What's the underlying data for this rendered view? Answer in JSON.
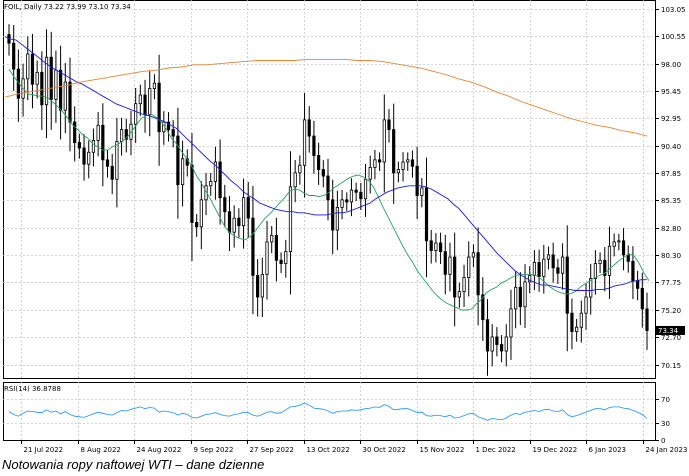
{
  "caption": "Notowania ropy naftowej WTI – dane dzienne",
  "chart_data": [
    {
      "type": "candlestick",
      "title": "FOIL, Daily 73.22 73.99 73.10 73.34",
      "ylim": [
        68.9,
        103.9
      ],
      "y_ticks": [
        "103.05",
        "100.55",
        "98.00",
        "95.45",
        "92.95",
        "90.40",
        "87.85",
        "85.35",
        "82.80",
        "80.30",
        "77.75",
        "75.20",
        "72.70",
        "70.15"
      ],
      "x_ticks": [
        "21 Jul 2022",
        "8 Aug 2022",
        "24 Aug 2022",
        "9 Sep 2022",
        "27 Sep 2022",
        "13 Oct 2022",
        "30 Oct 2022",
        "15 Nov 2022",
        "1 Dec 2022",
        "19 Dec 2022",
        "6 Jan 2023",
        "24 Jan 2023"
      ],
      "last_price_label": "73.34",
      "close": [
        99.9,
        97.5,
        94.8,
        96.6,
        98.9,
        96.1,
        97.2,
        94.2,
        98.6,
        94.7,
        97.4,
        93.7,
        96.3,
        92.6,
        90.7,
        90.2,
        88.7,
        89.8,
        90.9,
        92.3,
        89.1,
        88.5,
        87.3,
        90.8,
        91.9,
        91.0,
        92.4,
        94.3,
        95.1,
        93.3,
        95.7,
        96.2,
        91.7,
        92.6,
        91.9,
        91.3,
        86.8,
        89.2,
        88.6,
        83.3,
        82.9,
        85.4,
        86.7,
        87.1,
        88.9,
        85.6,
        84.3,
        82.4,
        83.7,
        83.0,
        85.6,
        83.7,
        78.4,
        76.4,
        78.5,
        81.5,
        82.1,
        79.8,
        79.5,
        80.6,
        86.6,
        87.9,
        88.6,
        92.8,
        91.3,
        89.5,
        88.2,
        87.6,
        85.4,
        82.6,
        84.7,
        85.4,
        85.2,
        86.3,
        86.1,
        85.5,
        87.3,
        88.4,
        89.1,
        88.9,
        92.8,
        91.9,
        87.9,
        88.2,
        88.9,
        89.1,
        88.5,
        85.8,
        86.5,
        81.6,
        80.7,
        81.4,
        80.6,
        78.5,
        80.1,
        76.4,
        76.9,
        78.2,
        80.1,
        80.5,
        76.6,
        74.3,
        71.4,
        72.7,
        72.0,
        71.4,
        72.7,
        75.3,
        77.3,
        75.5,
        77.8,
        78.4,
        79.6,
        78.3,
        79.9,
        80.3,
        79.1,
        78.6,
        80.1,
        74.9,
        73.2,
        73.6,
        74.9,
        76.4,
        78.1,
        79.5,
        79.8,
        78.4,
        81.1,
        81.5,
        81.6,
        80.3,
        79.7,
        77.9,
        77.2,
        75.3,
        73.3
      ],
      "sma_fast": [
        97.5,
        96.8,
        96.2,
        95.6,
        95.2,
        95.1,
        95.0,
        95.0,
        94.8,
        94.4,
        94.0,
        93.5,
        92.9,
        92.3,
        91.9,
        91.4,
        91.1,
        90.6,
        90.3,
        90.0,
        90.0,
        90.3,
        90.5,
        90.8,
        91.2,
        91.8,
        92.4,
        93.0,
        93.2,
        93.3,
        93.0,
        92.6,
        91.9,
        91.1,
        90.6,
        89.9,
        89.3,
        88.6,
        87.7,
        87.0,
        86.2,
        85.4,
        84.5,
        83.6,
        82.8,
        82.3,
        82.0,
        81.8,
        81.7,
        82.0,
        82.5,
        83.1,
        83.7,
        84.1,
        84.6,
        85.1,
        85.6,
        86.2,
        86.4,
        86.3,
        86.0,
        85.8,
        85.8,
        85.7,
        85.8,
        86.1,
        86.5,
        86.8,
        87.1,
        87.4,
        87.6,
        87.7,
        87.5,
        87.2,
        86.6,
        85.7,
        84.7,
        83.8,
        82.9,
        82.0,
        81.1,
        80.3,
        79.6,
        78.8,
        78.2,
        77.6,
        77.0,
        76.5,
        76.1,
        75.8,
        75.6,
        75.4,
        75.2,
        75.2,
        75.3,
        75.8,
        76.2,
        76.8,
        77.1,
        77.3,
        77.7,
        77.9,
        78.2,
        78.4,
        78.5,
        78.5,
        78.5,
        78.4,
        78.1,
        77.7,
        77.3,
        77.0,
        76.8,
        76.7,
        76.7,
        76.9,
        77.3,
        77.6,
        77.9,
        78.2,
        78.4,
        78.6,
        79.0,
        79.4,
        79.8,
        80.1,
        80.4,
        80.2,
        79.5,
        78.6,
        77.9
      ],
      "sma_mid": [
        100.5,
        100.3,
        100.2,
        99.8,
        99.4,
        99.0,
        98.6,
        98.2,
        97.8,
        97.5,
        97.2,
        96.9,
        96.6,
        96.3,
        96.1,
        95.8,
        95.5,
        95.2,
        94.9,
        94.6,
        94.3,
        94.1,
        93.9,
        93.7,
        93.5,
        93.3,
        93.2,
        93.0,
        92.8,
        92.6,
        92.3,
        92.0,
        91.5,
        91.0,
        90.5,
        90.0,
        89.5,
        89.0,
        88.6,
        88.1,
        87.6,
        87.1,
        86.7,
        86.2,
        85.8,
        85.5,
        85.1,
        84.9,
        84.7,
        84.5,
        84.4,
        84.3,
        84.3,
        84.2,
        84.2,
        84.1,
        84.0,
        84.0,
        84.0,
        84.1,
        84.2,
        84.2,
        84.3,
        84.5,
        84.7,
        84.9,
        85.1,
        85.5,
        85.8,
        86.1,
        86.3,
        86.5,
        86.6,
        86.7,
        86.7,
        86.7,
        86.6,
        86.4,
        86.1,
        85.8,
        85.5,
        85.0,
        84.6,
        84.0,
        83.4,
        82.8,
        82.2,
        81.6,
        81.0,
        80.4,
        79.9,
        79.4,
        78.9,
        78.5,
        78.2,
        77.9,
        77.7,
        77.5,
        77.5,
        77.4,
        77.3,
        77.2,
        77.1,
        77.0,
        77.0,
        77.0,
        77.0,
        77.1,
        77.1,
        77.2,
        77.4,
        77.5,
        77.6,
        77.8,
        77.9,
        78.0,
        78.0
      ]
    },
    {
      "type": "line",
      "title": "RSI(14) 36.8788",
      "ylim": [
        0,
        100
      ],
      "y_ticks": [
        "70",
        "30",
        "0"
      ],
      "values": [
        49,
        44,
        41,
        46,
        50,
        49,
        48,
        47,
        52,
        48,
        50,
        45,
        49,
        44,
        41,
        40,
        39,
        42,
        45,
        48,
        46,
        44,
        43,
        47,
        51,
        50,
        53,
        55,
        57,
        54,
        56,
        55,
        48,
        50,
        49,
        47,
        43,
        46,
        44,
        39,
        38,
        41,
        44,
        45,
        47,
        44,
        42,
        41,
        44,
        45,
        48,
        47,
        43,
        41,
        44,
        48,
        49,
        46,
        47,
        52,
        57,
        58,
        60,
        64,
        60,
        55,
        54,
        53,
        50,
        46,
        49,
        50,
        50,
        52,
        51,
        52,
        54,
        55,
        57,
        56,
        61,
        58,
        52,
        53,
        54,
        54,
        51,
        47,
        48,
        42,
        41,
        43,
        42,
        40,
        43,
        38,
        39,
        42,
        45,
        46,
        40,
        37,
        34,
        37,
        36,
        35,
        38,
        43,
        46,
        44,
        48,
        49,
        51,
        49,
        52,
        53,
        50,
        49,
        52,
        44,
        40,
        42,
        45,
        48,
        51,
        54,
        54,
        52,
        56,
        57,
        57,
        55,
        54,
        51,
        48,
        44,
        37
      ]
    },
    {
      "type": "line",
      "note_series": "sma_slow",
      "values": [
        94.9,
        95.2,
        95.4,
        95.6,
        95.8,
        96.0,
        96.3,
        96.5,
        96.7,
        96.9,
        97.1,
        97.3,
        97.4,
        97.6,
        97.7,
        97.9,
        97.9,
        98.0,
        98.1,
        98.2,
        98.3,
        98.3,
        98.3,
        98.3,
        98.4,
        98.4,
        98.4,
        98.4,
        98.3,
        98.3,
        98.2,
        98.0,
        97.8,
        97.6,
        97.3,
        97.0,
        96.6,
        96.3,
        95.9,
        95.4,
        95.0,
        94.5,
        94.1,
        93.7,
        93.3,
        92.9,
        92.6,
        92.3,
        92.1,
        91.8,
        91.6,
        91.3
      ]
    }
  ]
}
